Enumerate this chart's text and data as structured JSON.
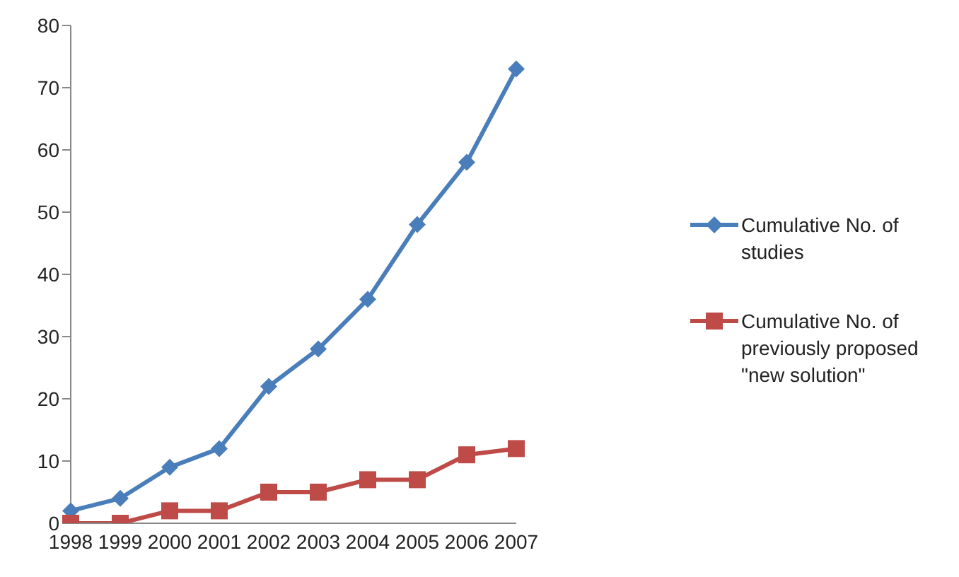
{
  "chart_data": {
    "type": "line",
    "categories": [
      "1998",
      "1999",
      "2000",
      "2001",
      "2002",
      "2003",
      "2004",
      "2005",
      "2006",
      "2007"
    ],
    "series": [
      {
        "name": "Cumulative No. of studies",
        "color": "#4a7ebb",
        "marker": "diamond",
        "values": [
          2,
          4,
          9,
          12,
          22,
          28,
          36,
          48,
          58,
          73
        ]
      },
      {
        "name": "Cumulative No. of previously proposed \"new solution\"",
        "color": "#be4b48",
        "marker": "square",
        "values": [
          0,
          0,
          2,
          2,
          5,
          5,
          7,
          7,
          11,
          12
        ]
      }
    ],
    "ylim": [
      0,
      80
    ],
    "yticks": [
      0,
      10,
      20,
      30,
      40,
      50,
      60,
      70,
      80
    ],
    "grid": false,
    "legend": "right"
  }
}
